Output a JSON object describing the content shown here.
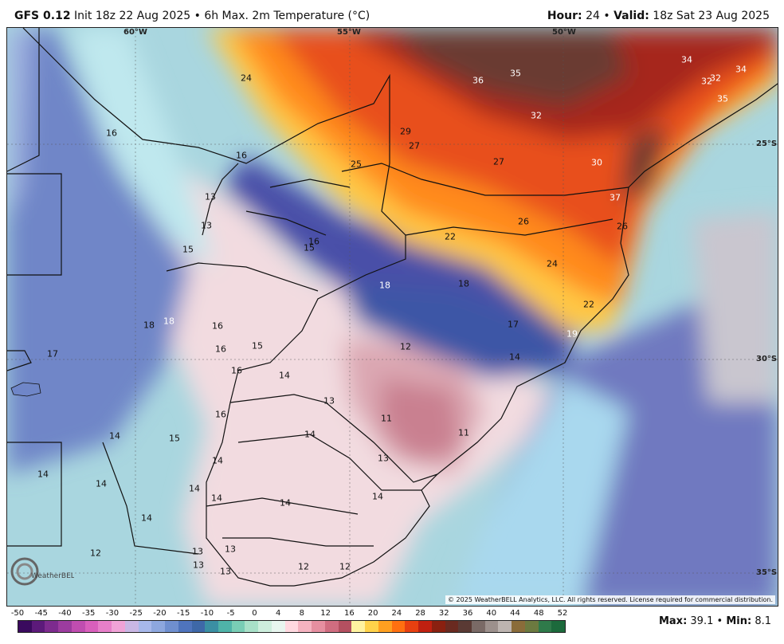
{
  "header": {
    "model": "GFS 0.12",
    "init": "Init 18z 22 Aug 2025",
    "separator": "•",
    "product": "6h Max. 2m Temperature (°C)",
    "hour_label": "Hour",
    "hour_value": "24",
    "valid_label": "Valid",
    "valid_value": "18z Sat 23 Aug 2025"
  },
  "map": {
    "coords": {
      "lon_60": "60°W",
      "lon_55": "55°W",
      "lon_50": "50°W",
      "lat_25": "25°S",
      "lat_30": "30°S",
      "lat_35": "35°S"
    },
    "labels": [
      "16",
      "24",
      "36",
      "35",
      "34",
      "32",
      "32",
      "34",
      "35",
      "29",
      "27",
      "32",
      "25",
      "27",
      "30",
      "13",
      "16",
      "13",
      "15",
      "15",
      "16",
      "22",
      "26",
      "37",
      "26",
      "18",
      "18",
      "24",
      "18",
      "16",
      "18",
      "15",
      "17",
      "12",
      "17",
      "14",
      "16",
      "16",
      "19",
      "22",
      "14",
      "13",
      "11",
      "16",
      "11",
      "14",
      "14",
      "15",
      "14",
      "13",
      "14",
      "14",
      "14",
      "14",
      "14",
      "14",
      "12",
      "14",
      "13",
      "13",
      "13",
      "12",
      "13",
      "12"
    ],
    "copyright": "© 2025 WeatherBELL Analytics, LLC. All rights reserved. License required for commercial distribution.",
    "logo_text": "WeatherBELL"
  },
  "colorbar": {
    "ticks": [
      "-50",
      "-45",
      "-40",
      "-35",
      "-30",
      "-25",
      "-20",
      "-15",
      "-10",
      "-5",
      "0",
      "4",
      "8",
      "12",
      "16",
      "20",
      "24",
      "28",
      "32",
      "36",
      "40",
      "44",
      "48",
      "52"
    ],
    "colors": [
      "#3a0a5e",
      "#5c1a7a",
      "#7d2b8e",
      "#9c3c9f",
      "#c04db0",
      "#d95fbc",
      "#e77fc9",
      "#f0a3d7",
      "#c9b7e4",
      "#a7b8ea",
      "#8da7de",
      "#6f8fcf",
      "#4f74bd",
      "#3e68a8",
      "#3b8fa3",
      "#4fb3a8",
      "#79cdb5",
      "#a8e0c8",
      "#cdeedd",
      "#e8f6ef",
      "#ffd9e0",
      "#f5b3c0",
      "#e68fa0",
      "#d06d80",
      "#b45060",
      "#fff3a0",
      "#ffd24a",
      "#ffa020",
      "#ff7010",
      "#e84010",
      "#c02010",
      "#8a2010",
      "#6a2a20",
      "#5a3a34",
      "#7a6a66",
      "#9c908c",
      "#bdb4b0",
      "#8a6c3a",
      "#6c7a40",
      "#2f7a4a",
      "#1c6a3c"
    ]
  },
  "stats": {
    "max_label": "Max",
    "max_value": "39.1",
    "min_label": "Min",
    "min_value": "8.1"
  }
}
